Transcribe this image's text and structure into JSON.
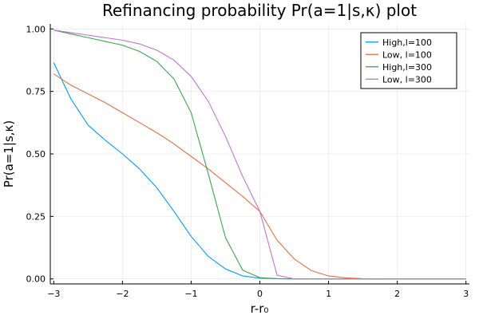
{
  "chart_data": {
    "type": "line",
    "title": "Refinancing probability Pr(a=1|s,κ) plot",
    "xlabel": "r-r₀",
    "ylabel": "Pr(a=1|s,κ)",
    "xlim": [
      -3.05,
      3.05
    ],
    "ylim": [
      -0.02,
      1.02
    ],
    "xticks": [
      -3,
      -2,
      -1,
      0,
      1,
      2,
      3
    ],
    "xtick_labels": [
      "−3",
      "−2",
      "−1",
      "0",
      "1",
      "2",
      "3"
    ],
    "yticks": [
      0,
      0.25,
      0.5,
      0.75,
      1
    ],
    "ytick_labels": [
      "0.00",
      "0.25",
      "0.50",
      "0.75",
      "1.00"
    ],
    "grid": true,
    "legend_position": "top-right",
    "series": [
      {
        "name": "High,l=100",
        "color": "#009AFA",
        "x": [
          -3,
          -2.75,
          -2.5,
          -2.25,
          -2,
          -1.75,
          -1.5,
          -1.25,
          -1,
          -0.75,
          -0.5,
          -0.25,
          0,
          0.25,
          0.5,
          0.75,
          1,
          1.25,
          1.5,
          1.75,
          2,
          2.25,
          2.5,
          2.75,
          3
        ],
        "y": [
          0.865,
          0.72,
          0.615,
          0.555,
          0.5,
          0.44,
          0.365,
          0.27,
          0.17,
          0.09,
          0.04,
          0.012,
          0.003,
          0.001,
          0,
          0,
          0,
          0,
          0,
          0,
          0,
          0,
          0,
          0,
          0
        ]
      },
      {
        "name": "Low, l=100",
        "color": "#E26F46",
        "x": [
          -3,
          -2.75,
          -2.5,
          -2.25,
          -2,
          -1.75,
          -1.5,
          -1.25,
          -1,
          -0.75,
          -0.5,
          -0.25,
          0,
          0.25,
          0.5,
          0.75,
          1,
          1.25,
          1.5,
          1.75,
          2,
          2.25,
          2.5,
          2.75,
          3
        ],
        "y": [
          0.82,
          0.775,
          0.74,
          0.705,
          0.665,
          0.625,
          0.585,
          0.54,
          0.49,
          0.44,
          0.385,
          0.33,
          0.27,
          0.155,
          0.08,
          0.033,
          0.012,
          0.004,
          0.001,
          0,
          0,
          0,
          0,
          0,
          0
        ]
      },
      {
        "name": "High,l=300",
        "color": "#3DA44D",
        "x": [
          -3,
          -2.75,
          -2.5,
          -2.25,
          -2,
          -1.75,
          -1.5,
          -1.25,
          -1,
          -0.75,
          -0.5,
          -0.25,
          0,
          0.25,
          0.5,
          0.75,
          1,
          1.25,
          1.5,
          1.75,
          2,
          2.25,
          2.5,
          2.75,
          3
        ],
        "y": [
          0.995,
          0.98,
          0.965,
          0.95,
          0.935,
          0.91,
          0.87,
          0.8,
          0.665,
          0.42,
          0.165,
          0.035,
          0.005,
          0.001,
          0,
          0,
          0,
          0,
          0,
          0,
          0,
          0,
          0,
          0,
          0
        ]
      },
      {
        "name": "Low, l=300",
        "color": "#C271D2",
        "x": [
          -3,
          -2.75,
          -2.5,
          -2.25,
          -2,
          -1.75,
          -1.5,
          -1.25,
          -1,
          -0.75,
          -0.5,
          -0.25,
          0,
          0.25,
          0.5,
          0.75,
          1,
          1.25,
          1.5,
          1.75,
          2,
          2.25,
          2.5,
          2.75,
          3
        ],
        "y": [
          0.995,
          0.985,
          0.975,
          0.965,
          0.955,
          0.94,
          0.915,
          0.875,
          0.81,
          0.71,
          0.57,
          0.41,
          0.27,
          0.015,
          0,
          0,
          0,
          0,
          0,
          0,
          0,
          0,
          0,
          0,
          0
        ]
      }
    ]
  }
}
